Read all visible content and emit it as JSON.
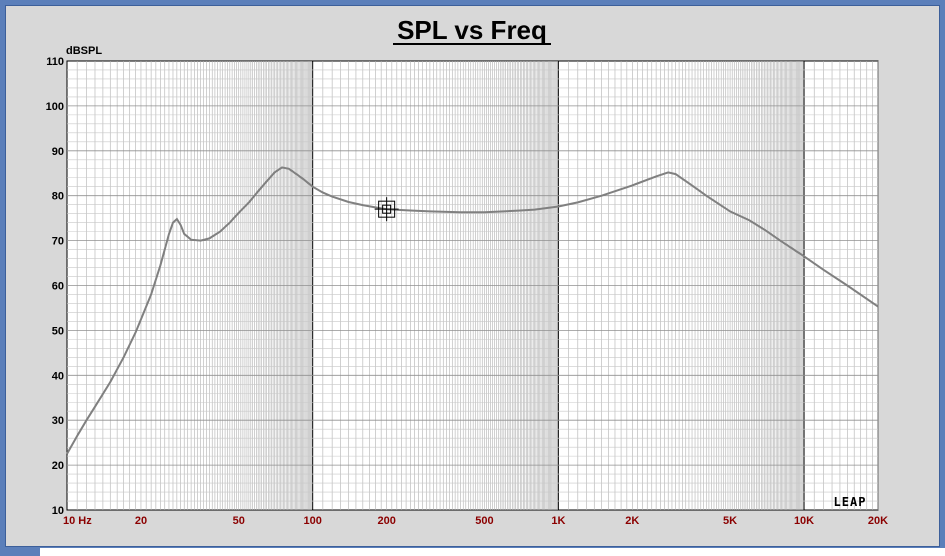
{
  "logo": "LEAP",
  "colors": {
    "background": "#d8d8d8",
    "plot_area": "#ffffff",
    "grid": "#b0b0b0",
    "curve": "#808080",
    "x_tick_text": "#8b0000",
    "frame": "#5b7fba"
  },
  "chart_data": {
    "type": "line",
    "title": "SPL vs Freq",
    "ylabel": "dBSPL",
    "xlabel": "",
    "x_scale": "log",
    "xlim": [
      10,
      20000
    ],
    "ylim": [
      10,
      110
    ],
    "yticks": [
      "10",
      "20",
      "30",
      "40",
      "50",
      "60",
      "70",
      "80",
      "90",
      "100",
      "110"
    ],
    "xticks": [
      {
        "value": 10,
        "label": "10  Hz"
      },
      {
        "value": 20,
        "label": "20"
      },
      {
        "value": 50,
        "label": "50"
      },
      {
        "value": 100,
        "label": "100"
      },
      {
        "value": 200,
        "label": "200"
      },
      {
        "value": 500,
        "label": "500"
      },
      {
        "value": 1000,
        "label": "1K"
      },
      {
        "value": 2000,
        "label": "2K"
      },
      {
        "value": 5000,
        "label": "5K"
      },
      {
        "value": 10000,
        "label": "10K"
      },
      {
        "value": 20000,
        "label": "20K"
      }
    ],
    "grid": true,
    "cursor": {
      "x": 200,
      "y": 77
    },
    "series": [
      {
        "x": [
          10,
          11,
          12,
          13,
          15,
          17,
          19,
          20,
          22,
          24,
          26,
          27,
          28,
          29,
          30,
          32,
          35,
          38,
          42,
          46,
          50,
          55,
          60,
          65,
          70,
          75,
          80,
          85,
          90,
          95,
          100,
          110,
          120,
          140,
          160,
          180,
          200,
          250,
          300,
          400,
          500,
          600,
          700,
          800,
          1000,
          1200,
          1500,
          2000,
          2500,
          2800,
          3000,
          3500,
          4000,
          5000,
          6000,
          7000,
          8000,
          10000,
          12000,
          15000,
          20000
        ],
        "y": [
          22.5,
          26.5,
          30,
          33,
          38.5,
          44,
          49.5,
          52.5,
          58,
          64.5,
          71.5,
          74,
          74.8,
          73.5,
          71.5,
          70.2,
          70,
          70.5,
          72,
          74,
          76.2,
          78.5,
          81,
          83.2,
          85.2,
          86.3,
          86,
          85,
          84,
          83,
          82,
          80.7,
          79.8,
          78.6,
          77.9,
          77.4,
          77.0,
          76.7,
          76.5,
          76.3,
          76.3,
          76.5,
          76.7,
          76.9,
          77.6,
          78.5,
          80.0,
          82.3,
          84.3,
          85.2,
          84.8,
          82.3,
          80.0,
          76.5,
          74.5,
          72.2,
          70.0,
          66.5,
          63.5,
          60.0,
          55.3
        ]
      }
    ]
  }
}
